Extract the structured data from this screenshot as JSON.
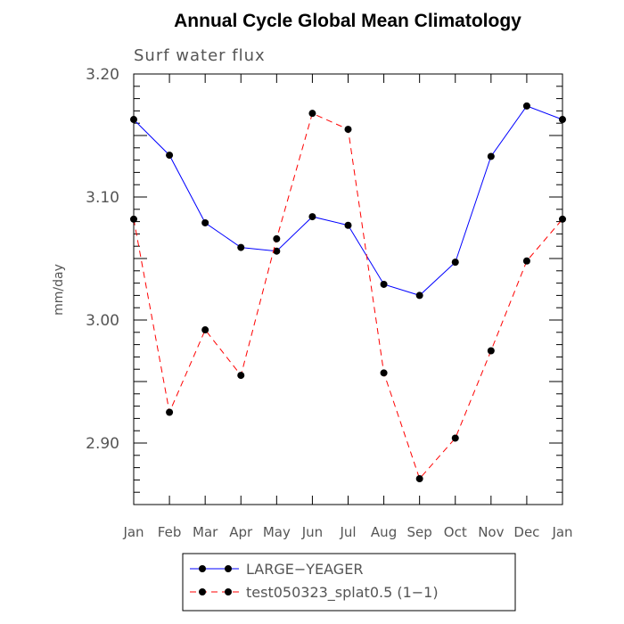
{
  "chart_data": {
    "type": "line",
    "title": "Annual Cycle Global Mean Climatology",
    "subtitle": "Surf water flux",
    "xlabel": "",
    "ylabel": "mm/day",
    "categories": [
      "Jan",
      "Feb",
      "Mar",
      "Apr",
      "May",
      "Jun",
      "Jul",
      "Aug",
      "Sep",
      "Oct",
      "Nov",
      "Dec",
      "Jan"
    ],
    "ylim": [
      2.85,
      3.2
    ],
    "yticks": [
      "3.20",
      "3.10",
      "3.00",
      "2.90"
    ],
    "ytick_values": [
      3.2,
      3.1,
      3.0,
      2.9
    ],
    "grid": false,
    "legend_position": "bottom",
    "series": [
      {
        "name": "LARGE−YEAGER",
        "color": "#0000ff",
        "dash": "solid",
        "values": [
          3.163,
          3.134,
          3.079,
          3.059,
          3.056,
          3.084,
          3.077,
          3.029,
          3.02,
          3.047,
          3.133,
          3.174,
          3.163
        ]
      },
      {
        "name": "test050323_splat0.5 (1−1)",
        "color": "#ff0000",
        "dash": "dashed",
        "values": [
          3.082,
          2.925,
          2.992,
          2.955,
          3.066,
          3.168,
          3.155,
          2.957,
          2.871,
          2.904,
          2.975,
          3.048,
          3.082
        ]
      }
    ]
  }
}
